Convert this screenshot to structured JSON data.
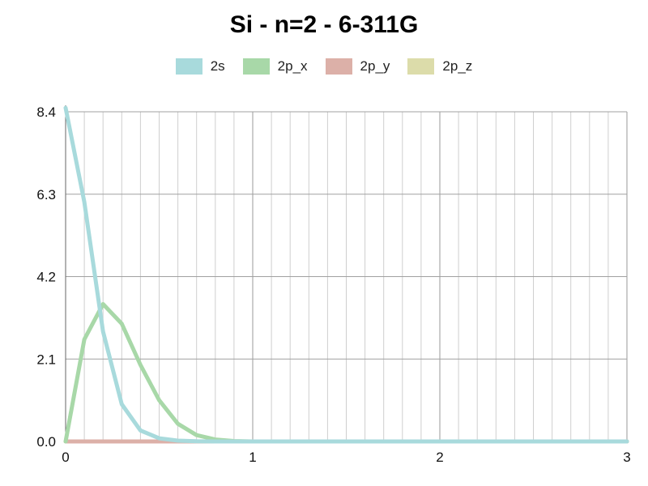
{
  "chart_data": {
    "type": "line",
    "title": "Si - n=2 - 6-311G",
    "xlabel": "",
    "ylabel": "",
    "xlim": [
      0,
      3
    ],
    "ylim": [
      0,
      8.4
    ],
    "x_ticks": [
      "0",
      "1",
      "2",
      "3"
    ],
    "y_ticks": [
      "0.0",
      "2.1",
      "4.2",
      "6.3",
      "8.4"
    ],
    "x_minor_step": 0.1,
    "grid": true,
    "legend_position": "top",
    "x": [
      0,
      0.1,
      0.2,
      0.3,
      0.4,
      0.5,
      0.6,
      0.7,
      0.8,
      0.9,
      1.0,
      1.5,
      2.0,
      2.5,
      3.0
    ],
    "series": [
      {
        "name": "2s",
        "color": "#a8dadc",
        "values": [
          8.5,
          6.1,
          2.8,
          0.95,
          0.28,
          0.08,
          0.02,
          0.005,
          0,
          0,
          0,
          0,
          0,
          0,
          0
        ]
      },
      {
        "name": "2p_x",
        "color": "#a8d8a8",
        "values": [
          0,
          2.6,
          3.5,
          3.0,
          1.95,
          1.05,
          0.45,
          0.16,
          0.05,
          0.01,
          0,
          0,
          0,
          0,
          0
        ]
      },
      {
        "name": "2p_y",
        "color": "#dcb0a8",
        "values": [
          0,
          0,
          0,
          0,
          0,
          0,
          0,
          0,
          0,
          0,
          0,
          0,
          0,
          0,
          0
        ]
      },
      {
        "name": "2p_z",
        "color": "#dcdcaa",
        "values": [
          0,
          0,
          0,
          0,
          0,
          0,
          0,
          0,
          0,
          0,
          0,
          0,
          0,
          0,
          0
        ]
      }
    ]
  }
}
